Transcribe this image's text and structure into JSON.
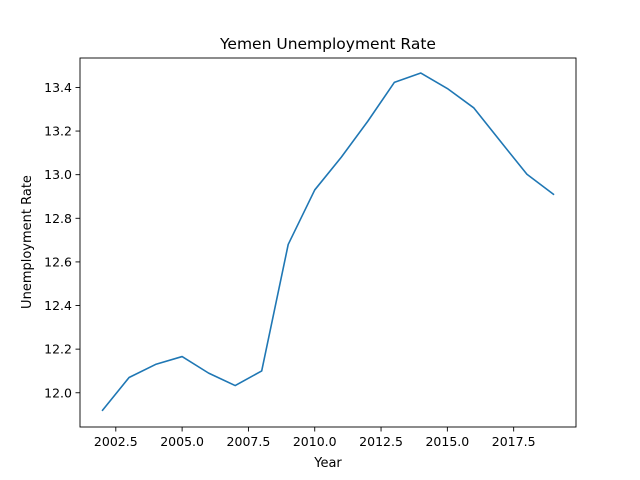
{
  "chart_data": {
    "type": "line",
    "title": "Yemen Unemployment Rate",
    "xlabel": "Year",
    "ylabel": "Unemployment Rate",
    "xlim": [
      2001.15,
      2019.85
    ],
    "ylim": [
      11.843,
      13.535
    ],
    "grid": false,
    "x_ticks": [
      2002.5,
      2005.0,
      2007.5,
      2010.0,
      2012.5,
      2015.0,
      2017.5
    ],
    "x_tick_labels": [
      "2002.5",
      "2005.0",
      "2007.5",
      "2010.0",
      "2012.5",
      "2015.0",
      "2017.5"
    ],
    "y_ticks": [
      12.0,
      12.2,
      12.4,
      12.6,
      12.8,
      13.0,
      13.2,
      13.4
    ],
    "y_tick_labels": [
      "12.0",
      "12.2",
      "12.4",
      "12.6",
      "12.8",
      "13.0",
      "13.2",
      "13.4"
    ],
    "line_color": "#1f77b4",
    "series": [
      {
        "x": [
          2002,
          2003,
          2004,
          2005,
          2006,
          2007,
          2008,
          2009,
          2010,
          2011,
          2012,
          2013,
          2014,
          2015,
          2016,
          2017,
          2018,
          2019
        ],
        "values": [
          11.92,
          12.07,
          12.13,
          12.166,
          12.09,
          12.033,
          12.1,
          12.68,
          12.93,
          13.08,
          13.245,
          13.423,
          13.466,
          13.395,
          13.306,
          13.153,
          13.002,
          12.91
        ]
      }
    ]
  }
}
